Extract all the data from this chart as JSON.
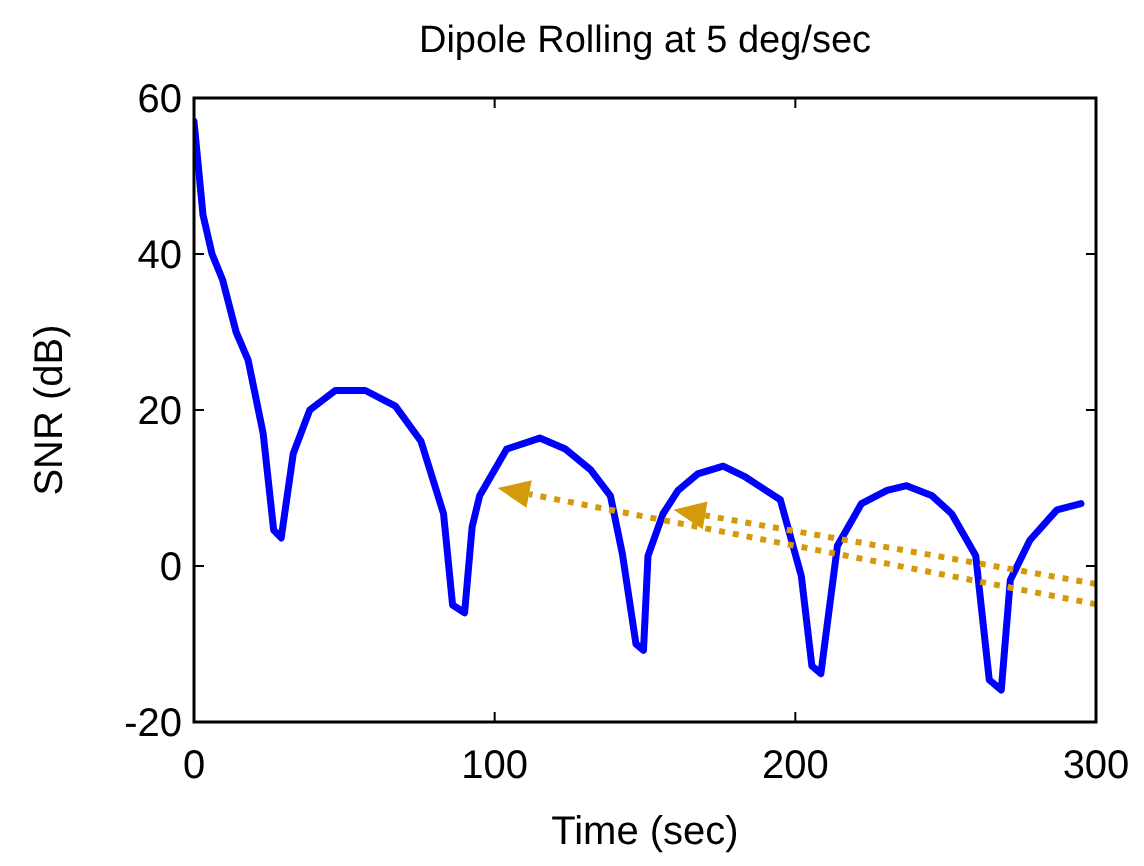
{
  "chart_data": {
    "type": "line",
    "title": "Dipole Rolling at 5 deg/sec",
    "xlabel": "Time (sec)",
    "ylabel": "SNR (dB)",
    "x": [
      0,
      3,
      6,
      9.5,
      14,
      18,
      23,
      26.5,
      29,
      33,
      38.5,
      47,
      57,
      67,
      75.5,
      83,
      86,
      90,
      92.5,
      95,
      104,
      115,
      123.5,
      132,
      138.5,
      142.5,
      147,
      149.5,
      151,
      156,
      161,
      167.5,
      176,
      183,
      195,
      202,
      205.5,
      208.5,
      214,
      222,
      230.5,
      237,
      245.5,
      252,
      260,
      264.5,
      268.5,
      271.5,
      278,
      287,
      295
    ],
    "series": [
      {
        "color": "#0000ff",
        "values": [
          57,
          45,
          40,
          36.7,
          30,
          26.4,
          17,
          4.6,
          3.6,
          14.4,
          20,
          22.5,
          22.5,
          20.5,
          16,
          6.7,
          -5,
          -6,
          5,
          9,
          15,
          16.4,
          15,
          12.3,
          9,
          1.5,
          -10,
          -10.8,
          1.3,
          6.7,
          9.7,
          11.8,
          12.8,
          11.5,
          8.5,
          -1.3,
          -12.8,
          -13.8,
          2.6,
          8,
          9.7,
          10.3,
          9,
          6.7,
          1.3,
          -14.6,
          -15.9,
          -1.8,
          3.3,
          7.2,
          8
        ]
      }
    ],
    "xlim": [
      0,
      300
    ],
    "xticks": [
      0,
      100,
      200,
      300
    ],
    "ylim": [
      -20,
      60
    ],
    "yticks": [
      -20,
      0,
      20,
      40,
      60
    ],
    "grid": false,
    "line_style": "solid",
    "marker": "none"
  }
}
